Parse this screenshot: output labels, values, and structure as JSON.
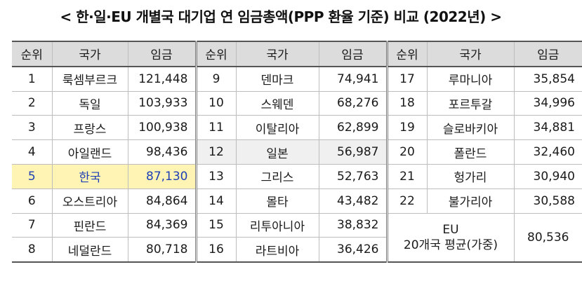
{
  "title": "< 한·일·EU 개별국 대기업 연 임금총액(PPP 환율 기준) 비교 (2022년) >",
  "headers": {
    "rank": "순위",
    "country": "국가",
    "wage": "임금"
  },
  "col1": [
    {
      "rank": "1",
      "country": "룩셈부르크",
      "wage": "121,448"
    },
    {
      "rank": "2",
      "country": "독일",
      "wage": "103,933"
    },
    {
      "rank": "3",
      "country": "프랑스",
      "wage": "100,938"
    },
    {
      "rank": "4",
      "country": "아일랜드",
      "wage": "98,436"
    },
    {
      "rank": "5",
      "country": "한국",
      "wage": "87,130"
    },
    {
      "rank": "6",
      "country": "오스트리아",
      "wage": "84,864"
    },
    {
      "rank": "7",
      "country": "핀란드",
      "wage": "84,369"
    },
    {
      "rank": "8",
      "country": "네덜란드",
      "wage": "80,718"
    }
  ],
  "col2": [
    {
      "rank": "9",
      "country": "덴마크",
      "wage": "74,941"
    },
    {
      "rank": "10",
      "country": "스웨덴",
      "wage": "68,276"
    },
    {
      "rank": "11",
      "country": "이탈리아",
      "wage": "62,899"
    },
    {
      "rank": "12",
      "country": "일본",
      "wage": "56,987"
    },
    {
      "rank": "13",
      "country": "그리스",
      "wage": "52,763"
    },
    {
      "rank": "14",
      "country": "몰타",
      "wage": "43,482"
    },
    {
      "rank": "15",
      "country": "리투아니아",
      "wage": "38,832"
    },
    {
      "rank": "16",
      "country": "라트비아",
      "wage": "36,426"
    }
  ],
  "col3": [
    {
      "rank": "17",
      "country": "루마니아",
      "wage": "35,854"
    },
    {
      "rank": "18",
      "country": "포르투갈",
      "wage": "34,996"
    },
    {
      "rank": "19",
      "country": "슬로바키아",
      "wage": "34,881"
    },
    {
      "rank": "20",
      "country": "폴란드",
      "wage": "32,460"
    },
    {
      "rank": "21",
      "country": "헝가리",
      "wage": "30,940"
    },
    {
      "rank": "22",
      "country": "불가리아",
      "wage": "30,588"
    }
  ],
  "eu_avg": {
    "label_line1": "EU",
    "label_line2": "20개국 평균(가중)",
    "wage": "80,536"
  },
  "colors": {
    "korea_highlight_bg": "#fff4b3",
    "korea_text": "#1f3fb7",
    "japan_highlight_bg": "#f0f0f0",
    "header_bg": "#dcdcdc"
  }
}
